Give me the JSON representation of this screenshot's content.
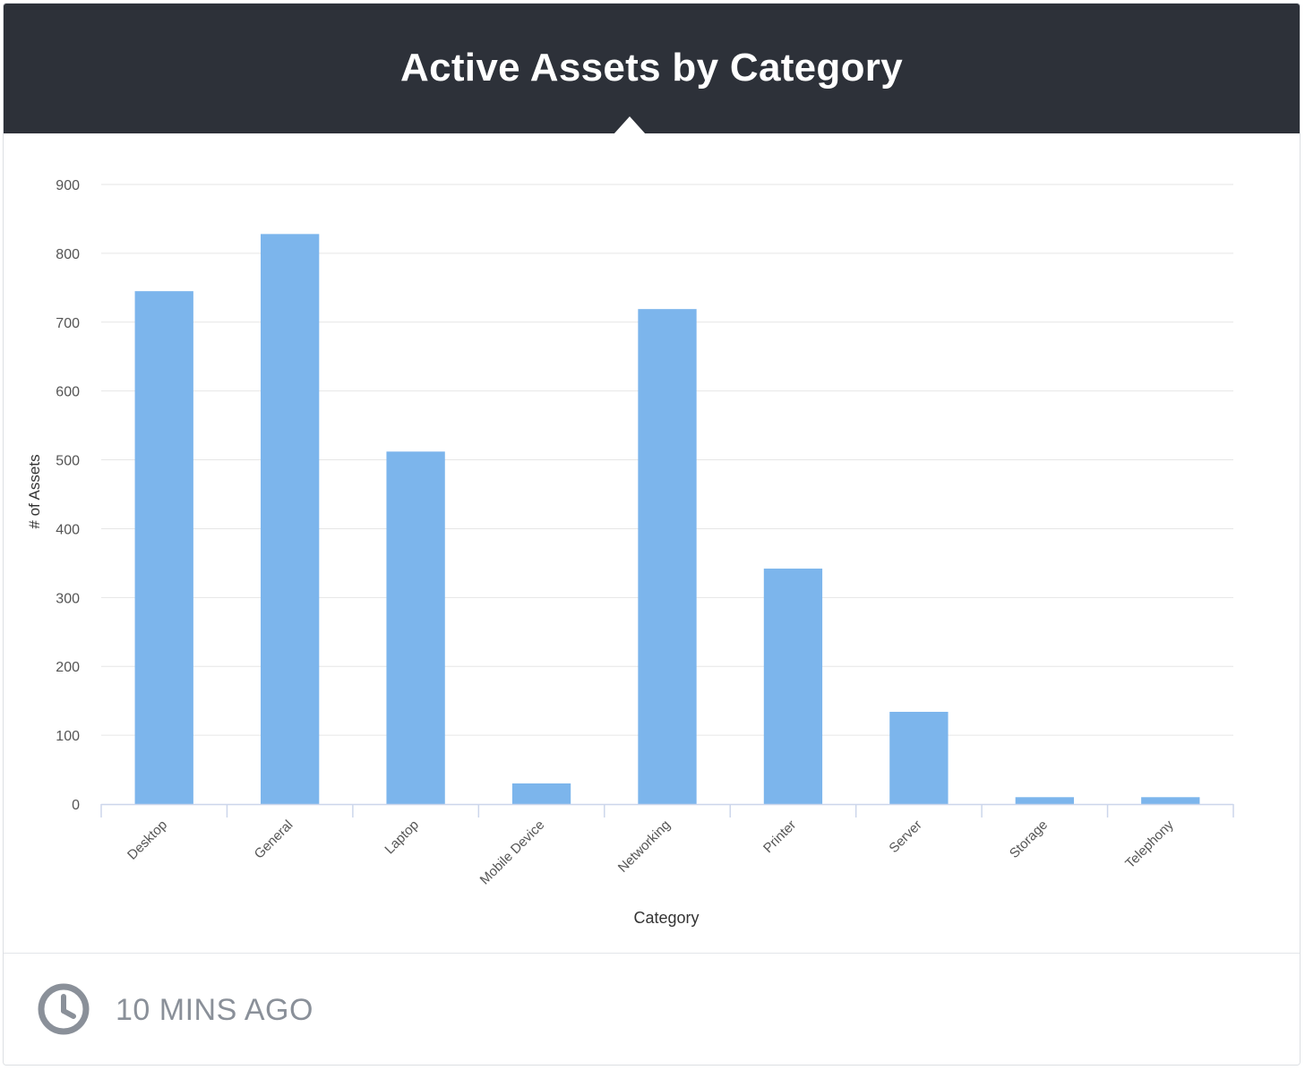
{
  "header": {
    "title": "Active Assets by Category"
  },
  "chart_data": {
    "type": "bar",
    "categories": [
      "Desktop",
      "General",
      "Laptop",
      "Mobile Device",
      "Networking",
      "Printer",
      "Server",
      "Storage",
      "Telephony"
    ],
    "values": [
      745,
      828,
      512,
      30,
      719,
      342,
      134,
      10,
      10
    ],
    "xlabel": "Category",
    "ylabel": "# of Assets",
    "ylim": [
      0,
      900
    ],
    "yticks": [
      0,
      100,
      200,
      300,
      400,
      500,
      600,
      700,
      800,
      900
    ],
    "grid": true,
    "legend": "none",
    "bar_color": "#7cb5ec"
  },
  "footer": {
    "updated_label": "10 MINS AGO"
  },
  "colors": {
    "header_bg": "#2d3139",
    "muted_text": "#8a9099"
  }
}
